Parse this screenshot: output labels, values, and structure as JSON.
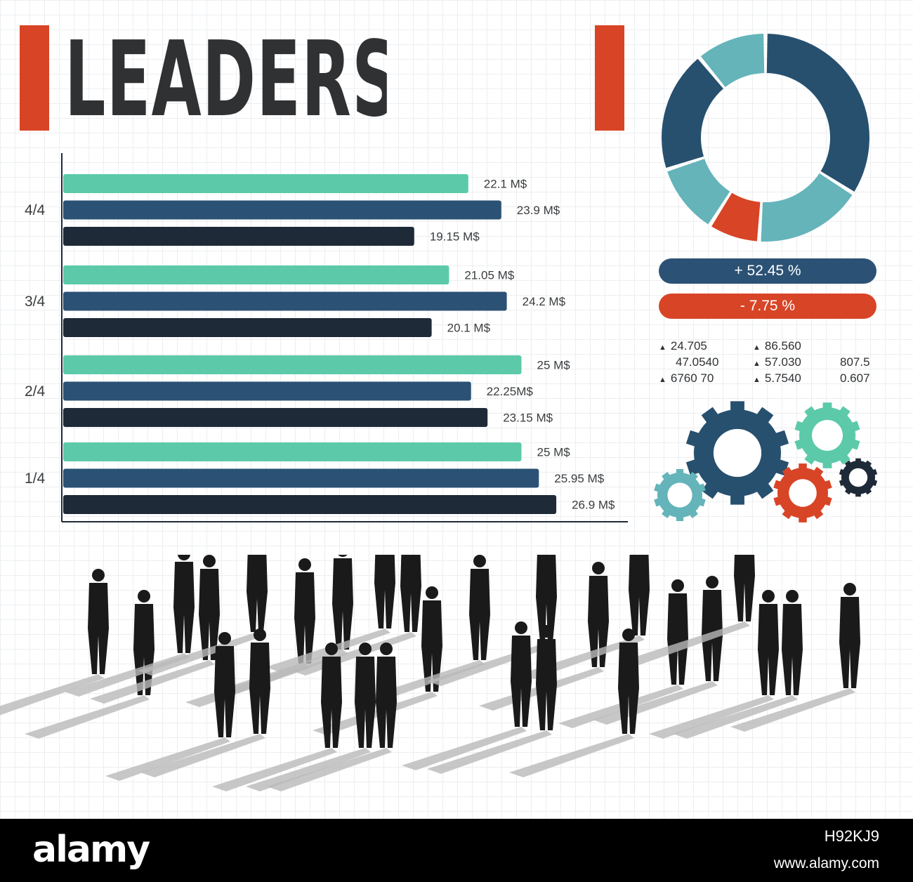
{
  "title": "LEADERSHIP",
  "colors": {
    "accent_red": "#d84426",
    "teal": "#5ccaa9",
    "blue": "#2b5274",
    "navy": "#1f2a38",
    "donut_dark": "#27506f",
    "donut_light": "#64b4ba",
    "text": "#2f3133"
  },
  "chart_data": [
    {
      "type": "bar",
      "orientation": "horizontal",
      "categories": [
        "4/4",
        "3/4",
        "2/4",
        "1/4"
      ],
      "series": [
        {
          "values": [
            22.1,
            21.05,
            25,
            25
          ],
          "labels": [
            "22.1 M$",
            "21.05 M$",
            "25 M$",
            "25 M$"
          ],
          "color": "#5ccaa9"
        },
        {
          "values": [
            23.9,
            24.2,
            22.25,
            25.95
          ],
          "labels": [
            "23.9 M$",
            "24.2 M$",
            "22.25M$",
            "25.95 M$"
          ],
          "color": "#2b5274"
        },
        {
          "values": [
            19.15,
            20.1,
            23.15,
            26.9
          ],
          "labels": [
            "19.15 M$",
            "20.1 M$",
            "23.15 M$",
            "26.9 M$"
          ],
          "color": "#1f2a38"
        }
      ],
      "xlim": [
        0,
        31
      ],
      "grid": true
    },
    {
      "type": "pie",
      "style": "donut",
      "values": [
        11,
        34,
        17,
        8,
        11,
        19
      ],
      "colors": [
        "#64b4ba",
        "#27506f",
        "#64b4ba",
        "#d84426",
        "#64b4ba",
        "#27506f"
      ]
    }
  ],
  "indicators": {
    "up": "+ 52.45 %",
    "down": "- 7.75 %"
  },
  "stats": {
    "col1": [
      {
        "value": "24.705",
        "marker": "▲"
      },
      {
        "value": "47.0540",
        "marker": ""
      },
      {
        "value": "6760 70",
        "marker": "▲"
      }
    ],
    "col2": [
      {
        "value": "86.560",
        "marker": "▲"
      },
      {
        "value": "57.030",
        "marker": "▲"
      },
      {
        "value": "5.7540",
        "marker": "▲"
      }
    ],
    "col3": [
      "807.5",
      "0.607"
    ]
  },
  "gears": [
    {
      "color": "#27506f",
      "icon": "gear-icon"
    },
    {
      "color": "#5ccaa9",
      "icon": "gear-icon"
    },
    {
      "color": "#d84426",
      "icon": "gear-icon"
    },
    {
      "color": "#64b4ba",
      "icon": "gear-icon"
    },
    {
      "color": "#1f2a38",
      "icon": "gear-icon"
    }
  ],
  "footer": {
    "logo": "alamy",
    "image_id": "H92KJ9",
    "url": "www.alamy.com"
  }
}
